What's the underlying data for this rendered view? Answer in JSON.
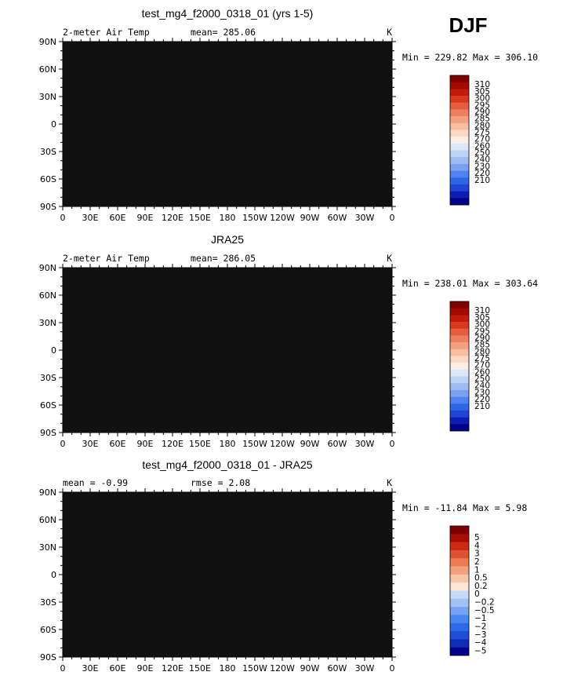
{
  "season_label": "DJF",
  "colors": {
    "abs_scale": [
      "#00008b",
      "#0a1eb4",
      "#1e46d2",
      "#2e64e6",
      "#4d82f0",
      "#7aa0f0",
      "#9cbcf2",
      "#bcd4f6",
      "#dae8fa",
      "#fbeee2",
      "#fbd8c2",
      "#f8bea0",
      "#f4a07e",
      "#ee8060",
      "#e65c3c",
      "#d83a20",
      "#c41a08",
      "#a40a00",
      "#800000"
    ],
    "diff_scale": [
      "#00008b",
      "#0e2cb6",
      "#1e4ed8",
      "#2e6ae8",
      "#4a86f0",
      "#76a4f2",
      "#a0c2f4",
      "#c4daf8",
      "#fde6d4",
      "#f8c6a6",
      "#f4a07a",
      "#ec7a52",
      "#e05232",
      "#cc2a14",
      "#a80c02",
      "#800000"
    ],
    "ocean_base": "#e35a3c"
  },
  "chart_data": [
    {
      "type": "heatmap",
      "title": "test_mg4_f2000_0318_01 (yrs 1-5)",
      "left_label": "2-meter Air Temp",
      "center_label": "mean= 285.06",
      "units": "K",
      "stats": "Min = 229.82 Max = 306.10",
      "x_ticks": [
        "0",
        "30E",
        "60E",
        "90E",
        "120E",
        "150E",
        "180",
        "150W",
        "120W",
        "90W",
        "60W",
        "30W",
        "0"
      ],
      "y_ticks": [
        "90N",
        "60N",
        "30N",
        "0",
        "30S",
        "60S",
        "90S"
      ],
      "colorbar_levels": [
        "310",
        "305",
        "300",
        "295",
        "290",
        "285",
        "280",
        "275",
        "270",
        "260",
        "250",
        "240",
        "230",
        "220",
        "210"
      ],
      "field": "model"
    },
    {
      "type": "heatmap",
      "title": "JRA25",
      "left_label": "2-meter Air Temp",
      "center_label": "mean= 286.05",
      "units": "K",
      "stats": "Min = 238.01 Max = 303.64",
      "x_ticks": [
        "0",
        "30E",
        "60E",
        "90E",
        "120E",
        "150E",
        "180",
        "150W",
        "120W",
        "90W",
        "60W",
        "30W",
        "0"
      ],
      "y_ticks": [
        "90N",
        "60N",
        "30N",
        "0",
        "30S",
        "60S",
        "90S"
      ],
      "colorbar_levels": [
        "310",
        "305",
        "300",
        "295",
        "290",
        "285",
        "280",
        "275",
        "270",
        "260",
        "250",
        "240",
        "230",
        "220",
        "210"
      ],
      "field": "obs"
    },
    {
      "type": "heatmap",
      "title": "test_mg4_f2000_0318_01 - JRA25",
      "left_label": "mean =   -0.99",
      "center_label": "rmse =    2.08",
      "units": "K",
      "stats": "Min = -11.84 Max =    5.98",
      "x_ticks": [
        "0",
        "30E",
        "60E",
        "90E",
        "120E",
        "150E",
        "180",
        "150W",
        "120W",
        "90W",
        "60W",
        "30W",
        "0"
      ],
      "y_ticks": [
        "90N",
        "60N",
        "30N",
        "0",
        "30S",
        "60S",
        "90S"
      ],
      "colorbar_levels": [
        "5",
        "4",
        "3",
        "2",
        "1",
        "0.5",
        "0.2",
        "0",
        "−0.2",
        "−0.5",
        "−1",
        "−2",
        "−3",
        "−4",
        "−5"
      ],
      "field": "diff"
    }
  ]
}
